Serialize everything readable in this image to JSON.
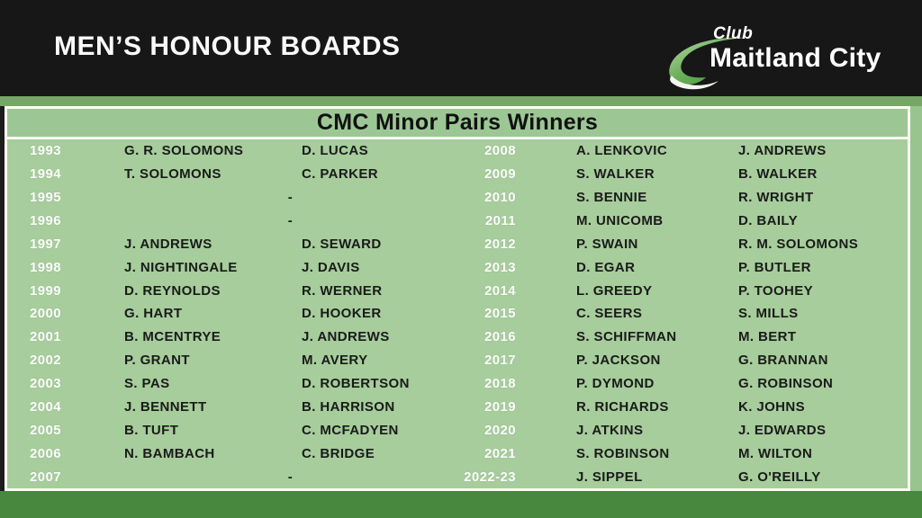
{
  "header": {
    "title": "MEN’S HONOUR BOARDS",
    "logo": {
      "top": "Club",
      "bottom": "Maitland City",
      "swoosh_icon": "green-crescent-swoosh"
    }
  },
  "board": {
    "title": "CMC Minor Pairs Winners",
    "left_rows": [
      {
        "year": "1993",
        "player1": "G. R. SOLOMONS",
        "player2": "D. LUCAS"
      },
      {
        "year": "1994",
        "player1": "T. SOLOMONS",
        "player2": "C. PARKER"
      },
      {
        "year": "1995",
        "merged": "-"
      },
      {
        "year": "1996",
        "merged": "-"
      },
      {
        "year": "1997",
        "player1": "J. ANDREWS",
        "player2": "D. SEWARD"
      },
      {
        "year": "1998",
        "player1": "J. NIGHTINGALE",
        "player2": "J. DAVIS"
      },
      {
        "year": "1999",
        "player1": "D. REYNOLDS",
        "player2": "R. WERNER"
      },
      {
        "year": "2000",
        "player1": "G. HART",
        "player2": "D. HOOKER"
      },
      {
        "year": "2001",
        "player1": "B. MCENTRYE",
        "player2": "J. ANDREWS"
      },
      {
        "year": "2002",
        "player1": "P. GRANT",
        "player2": "M. AVERY"
      },
      {
        "year": "2003",
        "player1": "S. PAS",
        "player2": "D. ROBERTSON"
      },
      {
        "year": "2004",
        "player1": "J. BENNETT",
        "player2": "B. HARRISON"
      },
      {
        "year": "2005",
        "player1": "B. TUFT",
        "player2": "C. MCFADYEN"
      },
      {
        "year": "2006",
        "player1": "N. BAMBACH",
        "player2": "C. BRIDGE"
      },
      {
        "year": "2007",
        "merged": "-"
      }
    ],
    "right_rows": [
      {
        "year": "2008",
        "player1": "A. LENKOVIC",
        "player2": "J. ANDREWS"
      },
      {
        "year": "2009",
        "player1": "S. WALKER",
        "player2": "B. WALKER"
      },
      {
        "year": "2010",
        "player1": "S. BENNIE",
        "player2": "R. WRIGHT"
      },
      {
        "year": "2011",
        "player1": "M. UNICOMB",
        "player2": "D. BAILY"
      },
      {
        "year": "2012",
        "player1": "P. SWAIN",
        "player2": "R. M. SOLOMONS"
      },
      {
        "year": "2013",
        "player1": "D. EGAR",
        "player2": "P. BUTLER"
      },
      {
        "year": "2014",
        "player1": "L. GREEDY",
        "player2": "P. TOOHEY"
      },
      {
        "year": "2015",
        "player1": "C. SEERS",
        "player2": "S. MILLS"
      },
      {
        "year": "2016",
        "player1": "S. SCHIFFMAN",
        "player2": "M. BERT"
      },
      {
        "year": "2017",
        "player1": "P. JACKSON",
        "player2": "G. BRANNAN"
      },
      {
        "year": "2018",
        "player1": "P. DYMOND",
        "player2": "G. ROBINSON"
      },
      {
        "year": "2019",
        "player1": "R. RICHARDS",
        "player2": "K. JOHNS"
      },
      {
        "year": "2020",
        "player1": "J. ATKINS",
        "player2": "J. EDWARDS"
      },
      {
        "year": "2021",
        "player1": "S. ROBINSON",
        "player2": "M. WILTON"
      },
      {
        "year": "2022-23",
        "player1": "J. SIPPEL",
        "player2": "G. O'REILLY"
      }
    ]
  },
  "colors": {
    "header_black": "#171717",
    "top_strip_green": "#76a768",
    "background_green": "#97c58d",
    "board_fill_green": "#a6cd9b",
    "title_band_green": "#9cc794",
    "border_white": "#fbfbf2",
    "bottom_bar_green": "#47883e",
    "year_text": "#fdfdfd",
    "name_text": "#1a1a1a",
    "swoosh_dark": "#3e8e35",
    "swoosh_light": "#b8dcaa"
  }
}
